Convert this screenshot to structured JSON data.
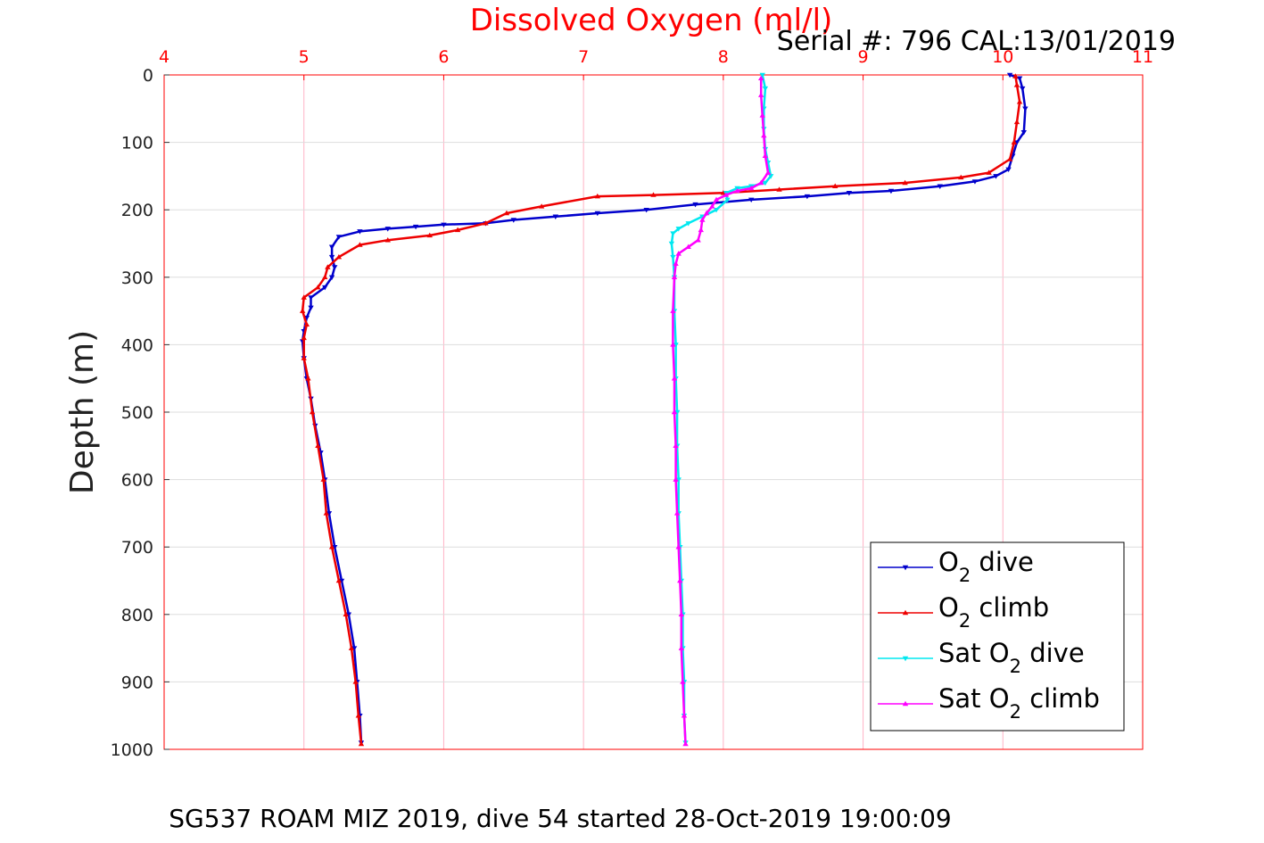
{
  "chart_data": {
    "type": "line",
    "title": "Dissolved Oxygen (ml/l)",
    "serial_text": "Serial #: 796  CAL:13/01/2019",
    "ylabel": "Depth (m)",
    "footer": "SG537 ROAM MIZ 2019, dive 54 started 28-Oct-2019 19:00:09",
    "xlim": [
      4,
      11
    ],
    "ylim": [
      0,
      1000
    ],
    "y_reversed": true,
    "x_axis_position": "top",
    "grid": true,
    "xticks": [
      "4",
      "5",
      "6",
      "7",
      "8",
      "9",
      "10",
      "11"
    ],
    "yticks": [
      "0",
      "100",
      "200",
      "300",
      "400",
      "500",
      "600",
      "700",
      "800",
      "900",
      "1000"
    ],
    "legend_position": "bottom-right",
    "series": [
      {
        "name": "O2 dive",
        "legend": {
          "base": "O",
          "sub": "2",
          "rest": " dive"
        },
        "color": "#0000cc",
        "marker": "triangle-down",
        "points": [
          [
            10.05,
            0
          ],
          [
            10.12,
            5
          ],
          [
            10.14,
            20
          ],
          [
            10.16,
            50
          ],
          [
            10.15,
            85
          ],
          [
            10.1,
            100
          ],
          [
            10.07,
            120
          ],
          [
            10.04,
            140
          ],
          [
            9.95,
            150
          ],
          [
            9.8,
            158
          ],
          [
            9.55,
            165
          ],
          [
            9.2,
            172
          ],
          [
            8.9,
            175
          ],
          [
            8.6,
            180
          ],
          [
            8.2,
            185
          ],
          [
            7.8,
            192
          ],
          [
            7.45,
            200
          ],
          [
            7.1,
            205
          ],
          [
            6.8,
            210
          ],
          [
            6.5,
            215
          ],
          [
            6.3,
            220
          ],
          [
            6.0,
            222
          ],
          [
            5.8,
            225
          ],
          [
            5.6,
            228
          ],
          [
            5.4,
            232
          ],
          [
            5.25,
            240
          ],
          [
            5.2,
            255
          ],
          [
            5.2,
            270
          ],
          [
            5.22,
            285
          ],
          [
            5.2,
            300
          ],
          [
            5.15,
            315
          ],
          [
            5.05,
            330
          ],
          [
            5.05,
            345
          ],
          [
            5.02,
            360
          ],
          [
            5.0,
            380
          ],
          [
            4.99,
            395
          ],
          [
            5.0,
            420
          ],
          [
            5.02,
            450
          ],
          [
            5.05,
            480
          ],
          [
            5.08,
            520
          ],
          [
            5.12,
            560
          ],
          [
            5.15,
            600
          ],
          [
            5.18,
            650
          ],
          [
            5.22,
            700
          ],
          [
            5.27,
            750
          ],
          [
            5.32,
            800
          ],
          [
            5.36,
            850
          ],
          [
            5.38,
            900
          ],
          [
            5.4,
            950
          ],
          [
            5.41,
            990
          ]
        ]
      },
      {
        "name": "O2 climb",
        "legend": {
          "base": "O",
          "sub": "2",
          "rest": " climb"
        },
        "color": "#ee0000",
        "marker": "triangle-up",
        "points": [
          [
            5.41,
            992
          ],
          [
            5.39,
            950
          ],
          [
            5.37,
            900
          ],
          [
            5.34,
            850
          ],
          [
            5.3,
            800
          ],
          [
            5.25,
            750
          ],
          [
            5.2,
            700
          ],
          [
            5.16,
            650
          ],
          [
            5.14,
            600
          ],
          [
            5.1,
            550
          ],
          [
            5.06,
            500
          ],
          [
            5.03,
            450
          ],
          [
            5.0,
            420
          ],
          [
            5.0,
            390
          ],
          [
            5.02,
            370
          ],
          [
            4.99,
            350
          ],
          [
            5.0,
            330
          ],
          [
            5.1,
            315
          ],
          [
            5.15,
            300
          ],
          [
            5.17,
            285
          ],
          [
            5.25,
            270
          ],
          [
            5.4,
            252
          ],
          [
            5.6,
            245
          ],
          [
            5.9,
            238
          ],
          [
            6.1,
            230
          ],
          [
            6.3,
            220
          ],
          [
            6.45,
            205
          ],
          [
            6.7,
            195
          ],
          [
            7.1,
            180
          ],
          [
            7.5,
            178
          ],
          [
            8.0,
            175
          ],
          [
            8.4,
            170
          ],
          [
            8.8,
            165
          ],
          [
            9.3,
            160
          ],
          [
            9.7,
            152
          ],
          [
            9.9,
            145
          ],
          [
            10.05,
            125
          ],
          [
            10.08,
            100
          ],
          [
            10.1,
            70
          ],
          [
            10.12,
            40
          ],
          [
            10.1,
            15
          ],
          [
            10.09,
            2
          ]
        ]
      },
      {
        "name": "Sat O2 dive",
        "legend": {
          "base": "Sat O",
          "sub": "2",
          "rest": " dive"
        },
        "color": "#00e8f0",
        "marker": "triangle-down",
        "points": [
          [
            8.28,
            0
          ],
          [
            8.3,
            20
          ],
          [
            8.29,
            50
          ],
          [
            8.29,
            80
          ],
          [
            8.3,
            110
          ],
          [
            8.32,
            130
          ],
          [
            8.34,
            150
          ],
          [
            8.3,
            160
          ],
          [
            8.2,
            165
          ],
          [
            8.1,
            168
          ],
          [
            8.02,
            175
          ],
          [
            8.03,
            185
          ],
          [
            7.95,
            200
          ],
          [
            7.85,
            210
          ],
          [
            7.75,
            220
          ],
          [
            7.68,
            228
          ],
          [
            7.64,
            235
          ],
          [
            7.63,
            250
          ],
          [
            7.64,
            270
          ],
          [
            7.65,
            300
          ],
          [
            7.65,
            350
          ],
          [
            7.66,
            400
          ],
          [
            7.66,
            450
          ],
          [
            7.67,
            500
          ],
          [
            7.67,
            550
          ],
          [
            7.68,
            600
          ],
          [
            7.68,
            650
          ],
          [
            7.69,
            700
          ],
          [
            7.7,
            750
          ],
          [
            7.71,
            800
          ],
          [
            7.71,
            850
          ],
          [
            7.72,
            900
          ],
          [
            7.72,
            950
          ],
          [
            7.73,
            990
          ]
        ]
      },
      {
        "name": "Sat O2 climb",
        "legend": {
          "base": "Sat O",
          "sub": "2",
          "rest": " climb"
        },
        "color": "#ff00ff",
        "marker": "triangle-up",
        "points": [
          [
            7.73,
            992
          ],
          [
            7.72,
            950
          ],
          [
            7.71,
            900
          ],
          [
            7.7,
            850
          ],
          [
            7.7,
            800
          ],
          [
            7.69,
            750
          ],
          [
            7.68,
            700
          ],
          [
            7.67,
            650
          ],
          [
            7.66,
            600
          ],
          [
            7.66,
            550
          ],
          [
            7.65,
            500
          ],
          [
            7.65,
            450
          ],
          [
            7.64,
            400
          ],
          [
            7.64,
            350
          ],
          [
            7.65,
            300
          ],
          [
            7.66,
            280
          ],
          [
            7.68,
            265
          ],
          [
            7.75,
            255
          ],
          [
            7.82,
            245
          ],
          [
            7.84,
            230
          ],
          [
            7.85,
            215
          ],
          [
            7.88,
            205
          ],
          [
            7.92,
            195
          ],
          [
            7.95,
            185
          ],
          [
            8.02,
            178
          ],
          [
            8.1,
            172
          ],
          [
            8.2,
            168
          ],
          [
            8.27,
            160
          ],
          [
            8.32,
            145
          ],
          [
            8.3,
            120
          ],
          [
            8.29,
            90
          ],
          [
            8.28,
            60
          ],
          [
            8.27,
            30
          ],
          [
            8.27,
            5
          ]
        ]
      }
    ]
  }
}
